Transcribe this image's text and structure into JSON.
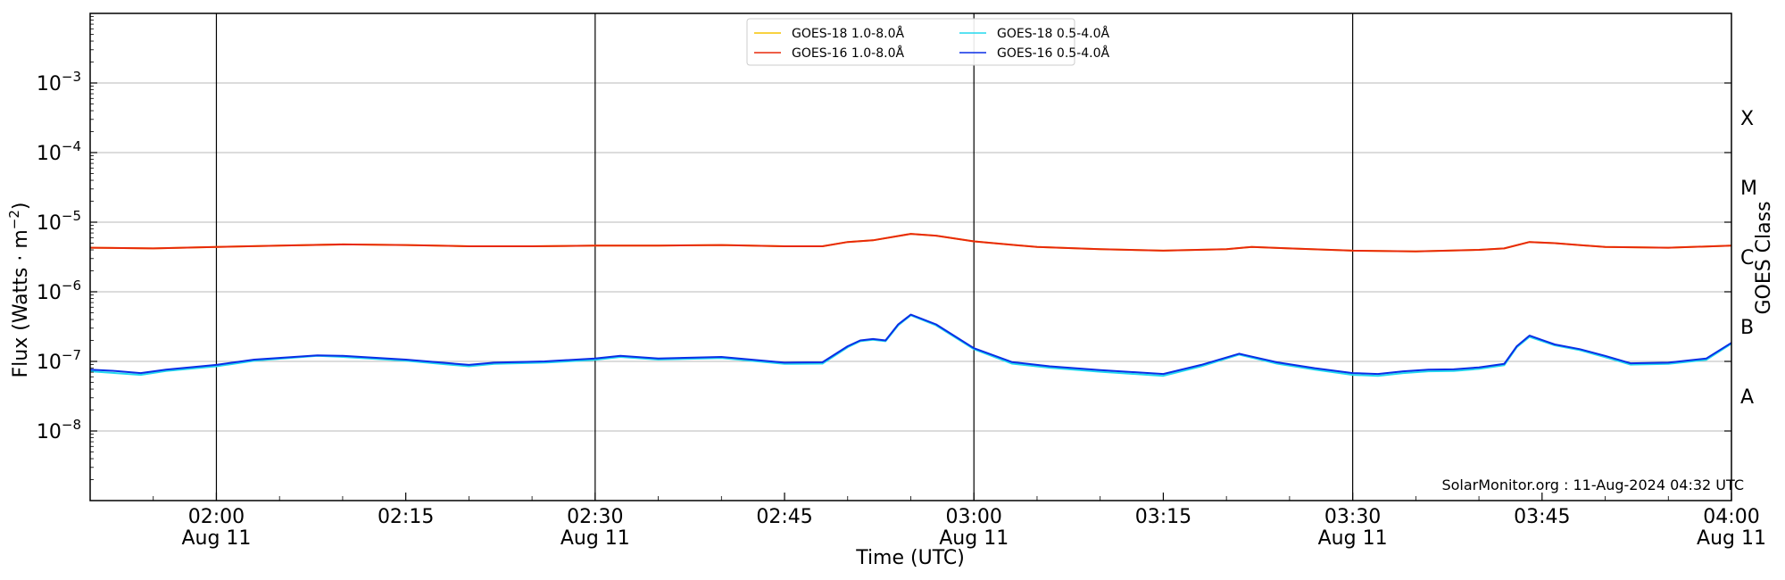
{
  "chart_data": {
    "type": "line",
    "xlabel": "Time (UTC)",
    "ylabel": "Flux (Watts · m⁻²)",
    "y2label": "GOES Class",
    "yscale": "log",
    "xlim": [
      "01:50",
      "04:00"
    ],
    "ylim": [
      1e-09,
      0.01
    ],
    "grid": true,
    "legend_position": "upper-center",
    "credit": "SolarMonitor.org : 11-Aug-2024 04:32 UTC",
    "x_ticks": [
      {
        "time": "02:00",
        "label": "02:00",
        "sublabel": "Aug 11"
      },
      {
        "time": "02:15",
        "label": "02:15",
        "sublabel": ""
      },
      {
        "time": "02:30",
        "label": "02:30",
        "sublabel": "Aug 11"
      },
      {
        "time": "02:45",
        "label": "02:45",
        "sublabel": ""
      },
      {
        "time": "03:00",
        "label": "03:00",
        "sublabel": "Aug 11"
      },
      {
        "time": "03:15",
        "label": "03:15",
        "sublabel": ""
      },
      {
        "time": "03:30",
        "label": "03:30",
        "sublabel": "Aug 11"
      },
      {
        "time": "03:45",
        "label": "03:45",
        "sublabel": ""
      },
      {
        "time": "04:00",
        "label": "04:00",
        "sublabel": "Aug 11"
      }
    ],
    "day_markers": [
      "02:00",
      "02:30",
      "03:00",
      "03:30"
    ],
    "y_ticks": [
      {
        "value": 0.001,
        "base": "10",
        "exp": "−3"
      },
      {
        "value": 0.0001,
        "base": "10",
        "exp": "−4"
      },
      {
        "value": 1e-05,
        "base": "10",
        "exp": "−5"
      },
      {
        "value": 1e-06,
        "base": "10",
        "exp": "−6"
      },
      {
        "value": 1e-07,
        "base": "10",
        "exp": "−7"
      },
      {
        "value": 1e-08,
        "base": "10",
        "exp": "−8"
      }
    ],
    "goes_classes": [
      {
        "label": "X",
        "value": 0.000316
      },
      {
        "label": "M",
        "value": 3.16e-05
      },
      {
        "label": "C",
        "value": 3.16e-06
      },
      {
        "label": "B",
        "value": 3.16e-07
      },
      {
        "label": "A",
        "value": 3.16e-08
      }
    ],
    "series": [
      {
        "name": "GOES-18 1.0-8.0Å",
        "color": "#f5c400",
        "x": [
          "01:50",
          "01:55",
          "02:00",
          "02:05",
          "02:10",
          "02:15",
          "02:20",
          "02:25",
          "02:30",
          "02:35",
          "02:40",
          "02:45",
          "02:48",
          "02:50",
          "02:52",
          "02:55",
          "02:57",
          "03:00",
          "03:05",
          "03:10",
          "03:15",
          "03:20",
          "03:22",
          "03:25",
          "03:30",
          "03:35",
          "03:40",
          "03:42",
          "03:44",
          "03:46",
          "03:50",
          "03:55",
          "04:00"
        ],
        "y": [
          4.3e-06,
          4.2e-06,
          4.4e-06,
          4.6e-06,
          4.8e-06,
          4.7e-06,
          4.5e-06,
          4.5e-06,
          4.6e-06,
          4.6e-06,
          4.7e-06,
          4.5e-06,
          4.5e-06,
          5.2e-06,
          5.5e-06,
          6.8e-06,
          6.4e-06,
          5.3e-06,
          4.4e-06,
          4.1e-06,
          3.9e-06,
          4.1e-06,
          4.4e-06,
          4.2e-06,
          3.9e-06,
          3.8e-06,
          4e-06,
          4.2e-06,
          5.2e-06,
          5e-06,
          4.4e-06,
          4.3e-06,
          4.6e-06
        ]
      },
      {
        "name": "GOES-16 1.0-8.0Å",
        "color": "#e8290b",
        "x": [
          "01:50",
          "01:55",
          "02:00",
          "02:05",
          "02:10",
          "02:15",
          "02:20",
          "02:25",
          "02:30",
          "02:35",
          "02:40",
          "02:45",
          "02:48",
          "02:50",
          "02:52",
          "02:55",
          "02:57",
          "03:00",
          "03:05",
          "03:10",
          "03:15",
          "03:20",
          "03:22",
          "03:25",
          "03:30",
          "03:35",
          "03:40",
          "03:42",
          "03:44",
          "03:46",
          "03:50",
          "03:55",
          "04:00"
        ],
        "y": [
          4.3e-06,
          4.2e-06,
          4.4e-06,
          4.6e-06,
          4.8e-06,
          4.7e-06,
          4.5e-06,
          4.5e-06,
          4.6e-06,
          4.6e-06,
          4.7e-06,
          4.5e-06,
          4.5e-06,
          5.2e-06,
          5.5e-06,
          6.8e-06,
          6.4e-06,
          5.3e-06,
          4.4e-06,
          4.1e-06,
          3.9e-06,
          4.1e-06,
          4.4e-06,
          4.2e-06,
          3.9e-06,
          3.8e-06,
          4e-06,
          4.2e-06,
          5.2e-06,
          5e-06,
          4.4e-06,
          4.3e-06,
          4.6e-06
        ]
      },
      {
        "name": "GOES-18 0.5-4.0Å",
        "color": "#22d8ee",
        "x": [
          "01:50",
          "01:52",
          "01:54",
          "01:56",
          "02:00",
          "02:03",
          "02:08",
          "02:10",
          "02:15",
          "02:20",
          "02:22",
          "02:26",
          "02:30",
          "02:32",
          "02:35",
          "02:40",
          "02:45",
          "02:48",
          "02:50",
          "02:51",
          "02:52",
          "02:53",
          "02:54",
          "02:55",
          "02:57",
          "03:00",
          "03:03",
          "03:06",
          "03:10",
          "03:15",
          "03:18",
          "03:21",
          "03:24",
          "03:27",
          "03:30",
          "03:32",
          "03:34",
          "03:36",
          "03:38",
          "03:40",
          "03:42",
          "03:43",
          "03:44",
          "03:46",
          "03:48",
          "03:50",
          "03:52",
          "03:55",
          "03:58",
          "04:00"
        ],
        "y": [
          7.2e-08,
          6.8e-08,
          6.4e-08,
          7.3e-08,
          8.5e-08,
          1.02e-07,
          1.2e-07,
          1.16e-07,
          1.02e-07,
          8.5e-08,
          9.2e-08,
          9.6e-08,
          1.05e-07,
          1.16e-07,
          1.06e-07,
          1.12e-07,
          9.2e-08,
          9.3e-08,
          1.6e-07,
          1.95e-07,
          2.05e-07,
          1.95e-07,
          3.3e-07,
          4.6e-07,
          3.3e-07,
          1.5e-07,
          9.3e-08,
          8.1e-08,
          7.1e-08,
          6.2e-08,
          8.5e-08,
          1.25e-07,
          9.3e-08,
          7.6e-08,
          6.4e-08,
          6.2e-08,
          6.8e-08,
          7.2e-08,
          7.3e-08,
          7.8e-08,
          8.8e-08,
          1.6e-07,
          2.25e-07,
          1.7e-07,
          1.45e-07,
          1.15e-07,
          9e-08,
          9.2e-08,
          1.05e-07,
          1.8e-07
        ]
      },
      {
        "name": "GOES-16 0.5-4.0Å",
        "color": "#0a2ee6",
        "x": [
          "01:50",
          "01:52",
          "01:54",
          "01:56",
          "02:00",
          "02:03",
          "02:08",
          "02:10",
          "02:15",
          "02:20",
          "02:22",
          "02:26",
          "02:30",
          "02:32",
          "02:35",
          "02:40",
          "02:45",
          "02:48",
          "02:50",
          "02:51",
          "02:52",
          "02:53",
          "02:54",
          "02:55",
          "02:57",
          "03:00",
          "03:03",
          "03:06",
          "03:10",
          "03:15",
          "03:18",
          "03:21",
          "03:24",
          "03:27",
          "03:30",
          "03:32",
          "03:34",
          "03:36",
          "03:38",
          "03:40",
          "03:42",
          "03:43",
          "03:44",
          "03:46",
          "03:48",
          "03:50",
          "03:52",
          "03:55",
          "03:58",
          "04:00"
        ],
        "y": [
          7.6e-08,
          7.3e-08,
          6.8e-08,
          7.6e-08,
          8.9e-08,
          1.06e-07,
          1.22e-07,
          1.2e-07,
          1.06e-07,
          8.9e-08,
          9.6e-08,
          1e-07,
          1.1e-07,
          1.2e-07,
          1.1e-07,
          1.16e-07,
          9.6e-08,
          9.7e-08,
          1.65e-07,
          2e-07,
          2.1e-07,
          2e-07,
          3.4e-07,
          4.7e-07,
          3.4e-07,
          1.55e-07,
          9.8e-08,
          8.5e-08,
          7.5e-08,
          6.6e-08,
          8.9e-08,
          1.29e-07,
          9.7e-08,
          8e-08,
          6.8e-08,
          6.6e-08,
          7.2e-08,
          7.6e-08,
          7.7e-08,
          8.2e-08,
          9.2e-08,
          1.65e-07,
          2.35e-07,
          1.75e-07,
          1.5e-07,
          1.2e-07,
          9.4e-08,
          9.6e-08,
          1.1e-07,
          1.85e-07
        ]
      }
    ]
  }
}
